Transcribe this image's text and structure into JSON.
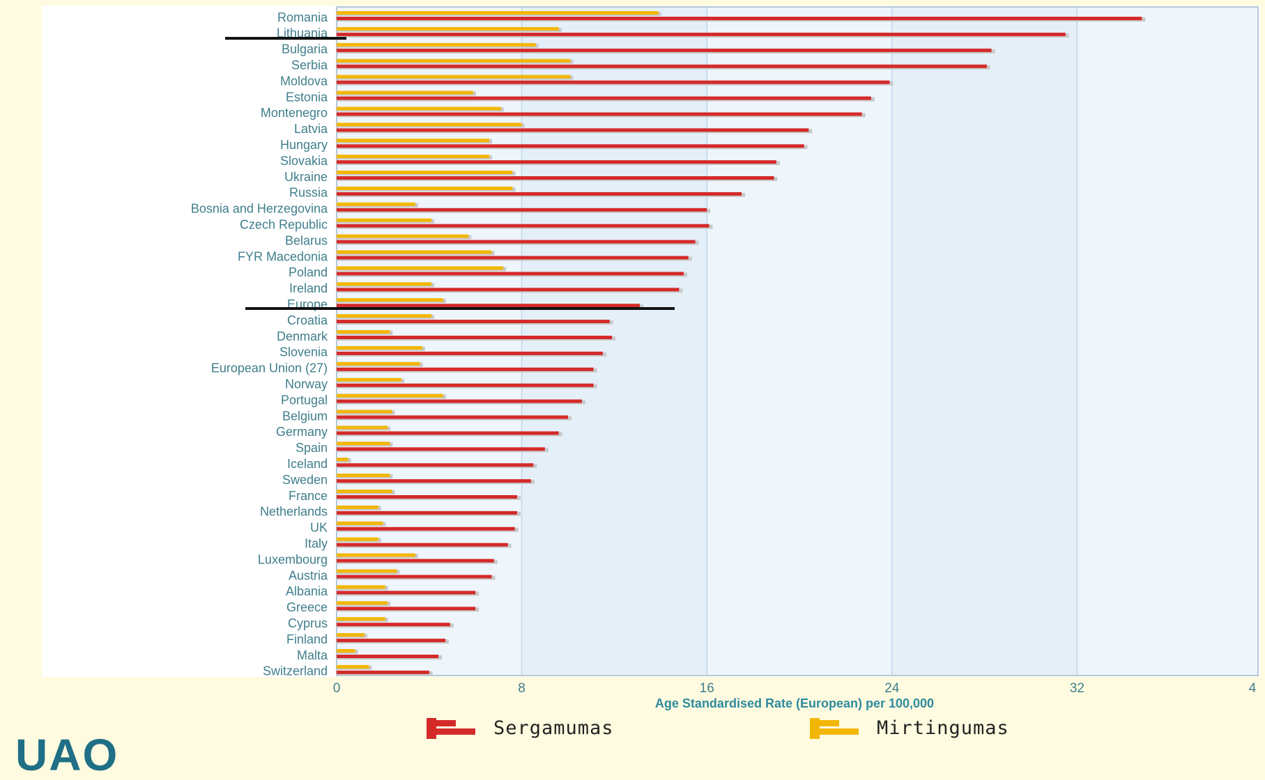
{
  "chart_data": {
    "type": "bar",
    "orientation": "horizontal",
    "xlabel": "Age Standardised Rate (European) per 100,000",
    "ylabel": "",
    "title": "",
    "xlim": [
      0,
      40
    ],
    "x_ticks": [
      "0",
      "8",
      "16",
      "24",
      "32",
      "4"
    ],
    "grid": true,
    "legend_position": "bottom",
    "categories": [
      "Romania",
      "Lithuania",
      "Bulgaria",
      "Serbia",
      "Moldova",
      "Estonia",
      "Montenegro",
      "Latvia",
      "Hungary",
      "Slovakia",
      "Ukraine",
      "Russia",
      "Bosnia and Herzegovina",
      "Czech Republic",
      "Belarus",
      "FYR Macedonia",
      "Poland",
      "Ireland",
      "Europe",
      "Croatia",
      "Denmark",
      "Slovenia",
      "European Union (27)",
      "Norway",
      "Portugal",
      "Belgium",
      "Germany",
      "Spain",
      "Iceland",
      "Sweden",
      "France",
      "Netherlands",
      "UK",
      "Italy",
      "Luxembourg",
      "Austria",
      "Albania",
      "Greece",
      "Cyprus",
      "Finland",
      "Malta",
      "Switzerland"
    ],
    "series": [
      {
        "name": "Sergamumas",
        "color": "#d42a2a",
        "values": [
          34.8,
          31.5,
          28.3,
          28.1,
          23.9,
          23.1,
          22.7,
          20.4,
          20.2,
          19.0,
          18.9,
          17.5,
          16.0,
          16.1,
          15.5,
          15.2,
          15.0,
          14.8,
          13.1,
          11.8,
          11.9,
          11.5,
          11.1,
          11.1,
          10.6,
          10.0,
          9.6,
          9.0,
          8.5,
          8.4,
          7.8,
          7.8,
          7.7,
          7.4,
          6.8,
          6.7,
          6.0,
          6.0,
          4.9,
          4.7,
          4.4,
          4.0
        ]
      },
      {
        "name": "Mirtingumas",
        "color": "#f2b705",
        "values": [
          13.9,
          9.6,
          8.6,
          10.1,
          10.1,
          5.9,
          7.1,
          8.0,
          6.6,
          6.6,
          7.6,
          7.6,
          3.4,
          4.1,
          5.7,
          6.7,
          7.2,
          4.1,
          4.6,
          4.1,
          2.3,
          3.7,
          3.6,
          2.8,
          4.6,
          2.4,
          2.2,
          2.3,
          0.5,
          2.3,
          2.4,
          1.8,
          2.0,
          1.8,
          3.4,
          2.6,
          2.1,
          2.2,
          2.1,
          1.2,
          0.8,
          1.4
        ]
      }
    ]
  },
  "logo_text": "UAO",
  "markers": [
    "Lithuania",
    "Europe"
  ]
}
